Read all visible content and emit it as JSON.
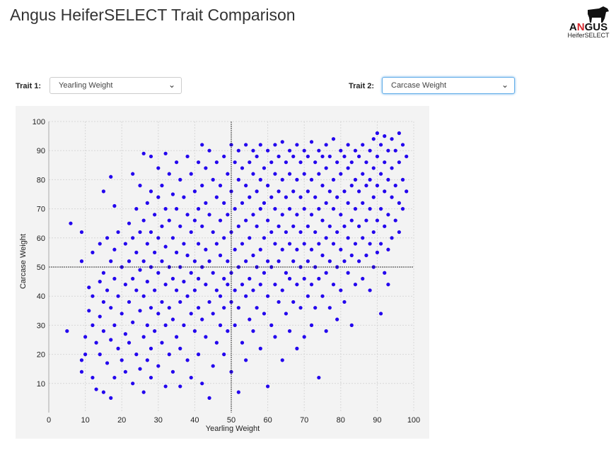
{
  "header": {
    "title": "Angus HeiferSELECT Trait Comparison",
    "logo_text": "ANGUS",
    "logo_sub": "HeiferSELECT"
  },
  "controls": {
    "trait1_label": "Trait 1:",
    "trait1_value": "Yearling Weight",
    "trait2_label": "Trait 2:",
    "trait2_value": "Carcase Weight"
  },
  "colors": {
    "point": "#2200ee",
    "ref": "#333333",
    "bg": "#f3f3f3"
  },
  "chart_data": {
    "type": "scatter",
    "xlabel": "Yearling Weight",
    "ylabel": "Carcase Weight",
    "xlim": [
      0,
      100
    ],
    "ylim": [
      0,
      100
    ],
    "xticks": [
      "0",
      "10",
      "20",
      "30",
      "40",
      "50",
      "60",
      "70",
      "80",
      "90",
      "100"
    ],
    "yticks": [
      "10",
      "20",
      "30",
      "40",
      "50",
      "60",
      "70",
      "80",
      "90",
      "100"
    ],
    "reference_lines": {
      "x": 50,
      "y": 50
    },
    "grid": true,
    "points": [
      [
        5,
        28
      ],
      [
        6,
        65
      ],
      [
        9,
        62
      ],
      [
        9,
        52
      ],
      [
        9,
        18
      ],
      [
        9,
        14
      ],
      [
        10,
        26
      ],
      [
        10,
        20
      ],
      [
        11,
        43
      ],
      [
        11,
        35
      ],
      [
        12,
        55
      ],
      [
        12,
        40
      ],
      [
        12,
        30
      ],
      [
        12,
        12
      ],
      [
        13,
        24
      ],
      [
        13,
        8
      ],
      [
        14,
        58
      ],
      [
        14,
        45
      ],
      [
        14,
        33
      ],
      [
        14,
        20
      ],
      [
        15,
        76
      ],
      [
        15,
        48
      ],
      [
        15,
        38
      ],
      [
        15,
        28
      ],
      [
        15,
        7
      ],
      [
        16,
        60
      ],
      [
        16,
        42
      ],
      [
        16,
        17
      ],
      [
        17,
        81
      ],
      [
        17,
        52
      ],
      [
        17,
        36
      ],
      [
        17,
        25
      ],
      [
        17,
        5
      ],
      [
        18,
        71
      ],
      [
        18,
        56
      ],
      [
        18,
        46
      ],
      [
        18,
        30
      ],
      [
        18,
        12
      ],
      [
        19,
        62
      ],
      [
        19,
        40
      ],
      [
        19,
        22
      ],
      [
        20,
        50
      ],
      [
        20,
        34
      ],
      [
        20,
        18
      ],
      [
        21,
        58
      ],
      [
        21,
        44
      ],
      [
        21,
        27
      ],
      [
        21,
        14
      ],
      [
        22,
        65
      ],
      [
        22,
        52
      ],
      [
        22,
        38
      ],
      [
        22,
        24
      ],
      [
        23,
        82
      ],
      [
        23,
        60
      ],
      [
        23,
        46
      ],
      [
        23,
        31
      ],
      [
        23,
        10
      ],
      [
        24,
        70
      ],
      [
        24,
        55
      ],
      [
        24,
        42
      ],
      [
        24,
        20
      ],
      [
        25,
        78
      ],
      [
        25,
        62
      ],
      [
        25,
        49
      ],
      [
        25,
        35
      ],
      [
        25,
        15
      ],
      [
        26,
        89
      ],
      [
        26,
        66
      ],
      [
        26,
        52
      ],
      [
        26,
        40
      ],
      [
        26,
        26
      ],
      [
        26,
        7
      ],
      [
        27,
        72
      ],
      [
        27,
        58
      ],
      [
        27,
        45
      ],
      [
        27,
        30
      ],
      [
        27,
        18
      ],
      [
        28,
        88
      ],
      [
        28,
        76
      ],
      [
        28,
        62
      ],
      [
        28,
        50
      ],
      [
        28,
        36
      ],
      [
        28,
        22
      ],
      [
        28,
        12
      ],
      [
        29,
        68
      ],
      [
        29,
        55
      ],
      [
        29,
        42
      ],
      [
        29,
        28
      ],
      [
        30,
        84
      ],
      [
        30,
        74
      ],
      [
        30,
        60
      ],
      [
        30,
        48
      ],
      [
        30,
        34
      ],
      [
        30,
        16
      ],
      [
        31,
        78
      ],
      [
        31,
        64
      ],
      [
        31,
        52
      ],
      [
        31,
        38
      ],
      [
        31,
        24
      ],
      [
        32,
        89
      ],
      [
        32,
        70
      ],
      [
        32,
        57
      ],
      [
        32,
        44
      ],
      [
        32,
        30
      ],
      [
        32,
        9
      ],
      [
        33,
        82
      ],
      [
        33,
        66
      ],
      [
        33,
        50
      ],
      [
        33,
        36
      ],
      [
        33,
        20
      ],
      [
        34,
        75
      ],
      [
        34,
        60
      ],
      [
        34,
        46
      ],
      [
        34,
        32
      ],
      [
        34,
        14
      ],
      [
        35,
        86
      ],
      [
        35,
        70
      ],
      [
        35,
        55
      ],
      [
        35,
        42
      ],
      [
        35,
        26
      ],
      [
        36,
        80
      ],
      [
        36,
        64
      ],
      [
        36,
        50
      ],
      [
        36,
        38
      ],
      [
        36,
        22
      ],
      [
        36,
        9
      ],
      [
        37,
        74
      ],
      [
        37,
        58
      ],
      [
        37,
        45
      ],
      [
        37,
        30
      ],
      [
        38,
        88
      ],
      [
        38,
        68
      ],
      [
        38,
        54
      ],
      [
        38,
        40
      ],
      [
        38,
        18
      ],
      [
        39,
        82
      ],
      [
        39,
        62
      ],
      [
        39,
        48
      ],
      [
        39,
        34
      ],
      [
        39,
        12
      ],
      [
        40,
        76
      ],
      [
        40,
        66
      ],
      [
        40,
        52
      ],
      [
        40,
        42
      ],
      [
        40,
        28
      ],
      [
        41,
        86
      ],
      [
        41,
        70
      ],
      [
        41,
        58
      ],
      [
        41,
        46
      ],
      [
        41,
        36
      ],
      [
        41,
        20
      ],
      [
        42,
        92
      ],
      [
        42,
        78
      ],
      [
        42,
        64
      ],
      [
        42,
        50
      ],
      [
        42,
        32
      ],
      [
        42,
        10
      ],
      [
        43,
        84
      ],
      [
        43,
        72
      ],
      [
        43,
        56
      ],
      [
        43,
        44
      ],
      [
        43,
        26
      ],
      [
        44,
        90
      ],
      [
        44,
        68
      ],
      [
        44,
        52
      ],
      [
        44,
        38
      ],
      [
        44,
        5
      ],
      [
        45,
        80
      ],
      [
        45,
        62
      ],
      [
        45,
        48
      ],
      [
        45,
        34
      ],
      [
        45,
        16
      ],
      [
        46,
        86
      ],
      [
        46,
        74
      ],
      [
        46,
        58
      ],
      [
        46,
        42
      ],
      [
        46,
        24
      ],
      [
        47,
        78
      ],
      [
        47,
        66
      ],
      [
        47,
        54
      ],
      [
        47,
        40
      ],
      [
        47,
        30
      ],
      [
        48,
        88
      ],
      [
        48,
        72
      ],
      [
        48,
        60
      ],
      [
        48,
        46
      ],
      [
        48,
        36
      ],
      [
        48,
        20
      ],
      [
        49,
        82
      ],
      [
        49,
        68
      ],
      [
        49,
        52
      ],
      [
        49,
        44
      ],
      [
        49,
        28
      ],
      [
        50,
        92
      ],
      [
        50,
        76
      ],
      [
        50,
        62
      ],
      [
        50,
        48
      ],
      [
        50,
        38
      ],
      [
        50,
        14
      ],
      [
        51,
        86
      ],
      [
        51,
        70
      ],
      [
        51,
        56
      ],
      [
        51,
        42
      ],
      [
        51,
        30
      ],
      [
        52,
        90
      ],
      [
        52,
        80
      ],
      [
        52,
        64
      ],
      [
        52,
        50
      ],
      [
        52,
        36
      ],
      [
        52,
        7
      ],
      [
        53,
        84
      ],
      [
        53,
        72
      ],
      [
        53,
        58
      ],
      [
        53,
        44
      ],
      [
        53,
        24
      ],
      [
        54,
        92
      ],
      [
        54,
        78
      ],
      [
        54,
        66
      ],
      [
        54,
        52
      ],
      [
        54,
        40
      ],
      [
        54,
        18
      ],
      [
        55,
        86
      ],
      [
        55,
        74
      ],
      [
        55,
        60
      ],
      [
        55,
        46
      ],
      [
        55,
        32
      ],
      [
        56,
        90
      ],
      [
        56,
        82
      ],
      [
        56,
        68
      ],
      [
        56,
        54
      ],
      [
        56,
        42
      ],
      [
        56,
        28
      ],
      [
        57,
        88
      ],
      [
        57,
        76
      ],
      [
        57,
        64
      ],
      [
        57,
        50
      ],
      [
        57,
        36
      ],
      [
        58,
        92
      ],
      [
        58,
        80
      ],
      [
        58,
        70
      ],
      [
        58,
        56
      ],
      [
        58,
        44
      ],
      [
        58,
        22
      ],
      [
        59,
        84
      ],
      [
        59,
        72
      ],
      [
        59,
        60
      ],
      [
        59,
        48
      ],
      [
        59,
        34
      ],
      [
        60,
        90
      ],
      [
        60,
        78
      ],
      [
        60,
        66
      ],
      [
        60,
        52
      ],
      [
        60,
        40
      ],
      [
        60,
        9
      ],
      [
        61,
        86
      ],
      [
        61,
        74
      ],
      [
        61,
        62
      ],
      [
        61,
        50
      ],
      [
        61,
        30
      ],
      [
        62,
        92
      ],
      [
        62,
        82
      ],
      [
        62,
        70
      ],
      [
        62,
        58
      ],
      [
        62,
        44
      ],
      [
        62,
        26
      ],
      [
        63,
        88
      ],
      [
        63,
        76
      ],
      [
        63,
        64
      ],
      [
        63,
        52
      ],
      [
        63,
        38
      ],
      [
        64,
        93
      ],
      [
        64,
        80
      ],
      [
        64,
        68
      ],
      [
        64,
        56
      ],
      [
        64,
        42
      ],
      [
        64,
        18
      ],
      [
        65,
        86
      ],
      [
        65,
        74
      ],
      [
        65,
        62
      ],
      [
        65,
        48
      ],
      [
        65,
        34
      ],
      [
        66,
        90
      ],
      [
        66,
        82
      ],
      [
        66,
        70
      ],
      [
        66,
        58
      ],
      [
        66,
        46
      ],
      [
        66,
        28
      ],
      [
        67,
        88
      ],
      [
        67,
        76
      ],
      [
        67,
        64
      ],
      [
        67,
        52
      ],
      [
        67,
        38
      ],
      [
        68,
        92
      ],
      [
        68,
        80
      ],
      [
        68,
        68
      ],
      [
        68,
        56
      ],
      [
        68,
        44
      ],
      [
        68,
        22
      ],
      [
        69,
        86
      ],
      [
        69,
        74
      ],
      [
        69,
        62
      ],
      [
        69,
        50
      ],
      [
        69,
        36
      ],
      [
        70,
        90
      ],
      [
        70,
        82
      ],
      [
        70,
        70
      ],
      [
        70,
        58
      ],
      [
        70,
        46
      ],
      [
        70,
        26
      ],
      [
        71,
        88
      ],
      [
        71,
        76
      ],
      [
        71,
        64
      ],
      [
        71,
        52
      ],
      [
        71,
        40
      ],
      [
        72,
        93
      ],
      [
        72,
        80
      ],
      [
        72,
        68
      ],
      [
        72,
        56
      ],
      [
        72,
        44
      ],
      [
        72,
        30
      ],
      [
        73,
        86
      ],
      [
        73,
        74
      ],
      [
        73,
        62
      ],
      [
        73,
        50
      ],
      [
        73,
        36
      ],
      [
        74,
        90
      ],
      [
        74,
        82
      ],
      [
        74,
        70
      ],
      [
        74,
        58
      ],
      [
        74,
        46
      ],
      [
        74,
        12
      ],
      [
        75,
        88
      ],
      [
        75,
        78
      ],
      [
        75,
        66
      ],
      [
        75,
        54
      ],
      [
        75,
        40
      ],
      [
        76,
        92
      ],
      [
        76,
        84
      ],
      [
        76,
        72
      ],
      [
        76,
        60
      ],
      [
        76,
        48
      ],
      [
        76,
        28
      ],
      [
        77,
        88
      ],
      [
        77,
        76
      ],
      [
        77,
        64
      ],
      [
        77,
        52
      ],
      [
        77,
        36
      ],
      [
        78,
        94
      ],
      [
        78,
        80
      ],
      [
        78,
        70
      ],
      [
        78,
        58
      ],
      [
        78,
        44
      ],
      [
        79,
        86
      ],
      [
        79,
        74
      ],
      [
        79,
        62
      ],
      [
        79,
        50
      ],
      [
        79,
        32
      ],
      [
        80,
        90
      ],
      [
        80,
        82
      ],
      [
        80,
        68
      ],
      [
        80,
        56
      ],
      [
        80,
        42
      ],
      [
        81,
        88
      ],
      [
        81,
        76
      ],
      [
        81,
        64
      ],
      [
        81,
        52
      ],
      [
        81,
        38
      ],
      [
        82,
        92
      ],
      [
        82,
        84
      ],
      [
        82,
        72
      ],
      [
        82,
        60
      ],
      [
        82,
        48
      ],
      [
        83,
        86
      ],
      [
        83,
        78
      ],
      [
        83,
        66
      ],
      [
        83,
        54
      ],
      [
        83,
        30
      ],
      [
        84,
        90
      ],
      [
        84,
        80
      ],
      [
        84,
        70
      ],
      [
        84,
        58
      ],
      [
        84,
        44
      ],
      [
        85,
        88
      ],
      [
        85,
        76
      ],
      [
        85,
        64
      ],
      [
        85,
        52
      ],
      [
        86,
        92
      ],
      [
        86,
        82
      ],
      [
        86,
        72
      ],
      [
        86,
        60
      ],
      [
        86,
        46
      ],
      [
        87,
        86
      ],
      [
        87,
        78
      ],
      [
        87,
        66
      ],
      [
        87,
        54
      ],
      [
        88,
        90
      ],
      [
        88,
        80
      ],
      [
        88,
        70
      ],
      [
        88,
        58
      ],
      [
        88,
        42
      ],
      [
        89,
        94
      ],
      [
        89,
        84
      ],
      [
        89,
        74
      ],
      [
        89,
        62
      ],
      [
        89,
        50
      ],
      [
        90,
        96
      ],
      [
        90,
        88
      ],
      [
        90,
        78
      ],
      [
        90,
        66
      ],
      [
        90,
        55
      ],
      [
        91,
        92
      ],
      [
        91,
        82
      ],
      [
        91,
        70
      ],
      [
        91,
        58
      ],
      [
        91,
        34
      ],
      [
        92,
        95
      ],
      [
        92,
        86
      ],
      [
        92,
        76
      ],
      [
        92,
        64
      ],
      [
        92,
        48
      ],
      [
        93,
        90
      ],
      [
        93,
        80
      ],
      [
        93,
        68
      ],
      [
        93,
        56
      ],
      [
        93,
        44
      ],
      [
        94,
        94
      ],
      [
        94,
        84
      ],
      [
        94,
        74
      ],
      [
        94,
        60
      ],
      [
        95,
        90
      ],
      [
        95,
        78
      ],
      [
        95,
        66
      ],
      [
        96,
        96
      ],
      [
        96,
        86
      ],
      [
        96,
        72
      ],
      [
        96,
        62
      ],
      [
        97,
        92
      ],
      [
        97,
        80
      ],
      [
        97,
        70
      ],
      [
        98,
        88
      ],
      [
        98,
        76
      ]
    ]
  }
}
